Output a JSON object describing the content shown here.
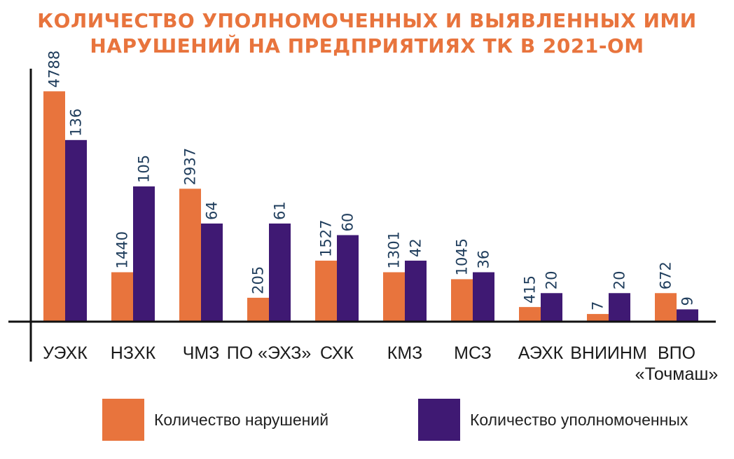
{
  "title_lines": [
    "КОЛИЧЕСТВО УПОЛНОМОЧЕННЫХ И ВЫЯВЛЕННЫХ ИМИ",
    "НАРУШЕНИЙ НА ПРЕДПРИЯТИЯХ ТК В 2021-ОМ"
  ],
  "colors": {
    "violations": "#e8743d",
    "authorized": "#3f1973",
    "label": "#1f3d5c",
    "axis": "#111111"
  },
  "legend": {
    "violations_label": "Количество нарушений",
    "authorized_label": "Количество уполномоченных"
  },
  "chart_data": {
    "type": "bar",
    "title": "КОЛИЧЕСТВО УПОЛНОМОЧЕННЫХ И ВЫЯВЛЕННЫХ ИМИ НАРУШЕНИЙ НА ПРЕДПРИЯТИЯХ ТК В 2021-ОМ",
    "categories": [
      [
        "УЭХК"
      ],
      [
        "НЗХК"
      ],
      [
        "ЧМЗ"
      ],
      [
        "ПО «ЭХЗ»"
      ],
      [
        "СХК"
      ],
      [
        "КМЗ"
      ],
      [
        "МСЗ"
      ],
      [
        "АЭХК"
      ],
      [
        "ВНИИНМ"
      ],
      [
        "ВПО",
        "«Точмаш»"
      ]
    ],
    "series": [
      {
        "name": "Количество нарушений",
        "values": [
          4788,
          1440,
          2937,
          205,
          1527,
          1301,
          1045,
          415,
          7,
          672
        ]
      },
      {
        "name": "Количество уполномоченных",
        "values": [
          136,
          105,
          64,
          61,
          60,
          42,
          36,
          20,
          20,
          9
        ]
      }
    ],
    "heights": [
      [
        0.99,
        0.21,
        0.57,
        0.1,
        0.26,
        0.21,
        0.18,
        0.06,
        0.03,
        0.12
      ],
      [
        0.78,
        0.58,
        0.42,
        0.42,
        0.37,
        0.26,
        0.21,
        0.12,
        0.12,
        0.05
      ]
    ],
    "legend_position": "bottom",
    "grid": false
  }
}
